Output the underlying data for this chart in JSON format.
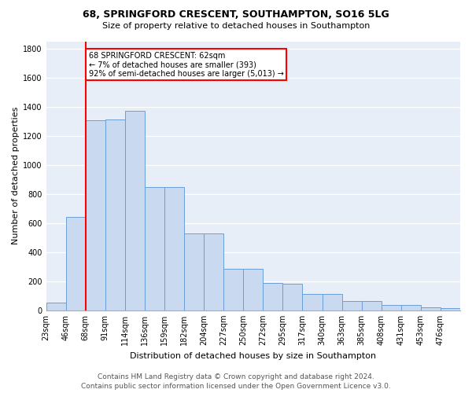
{
  "title1": "68, SPRINGFORD CRESCENT, SOUTHAMPTON, SO16 5LG",
  "title2": "Size of property relative to detached houses in Southampton",
  "xlabel": "Distribution of detached houses by size in Southampton",
  "ylabel": "Number of detached properties",
  "bin_labels": [
    "23sqm",
    "46sqm",
    "68sqm",
    "91sqm",
    "114sqm",
    "136sqm",
    "159sqm",
    "182sqm",
    "204sqm",
    "227sqm",
    "250sqm",
    "272sqm",
    "295sqm",
    "317sqm",
    "340sqm",
    "363sqm",
    "385sqm",
    "408sqm",
    "431sqm",
    "453sqm",
    "476sqm"
  ],
  "bar_heights": [
    55,
    640,
    1305,
    1310,
    1370,
    845,
    845,
    530,
    530,
    285,
    285,
    190,
    185,
    110,
    110,
    65,
    65,
    35,
    35,
    20,
    15
  ],
  "bar_color": "#c8d9f0",
  "bar_edge_color": "#6a9fd8",
  "annotation_text": "68 SPRINGFORD CRESCENT: 62sqm\n← 7% of detached houses are smaller (393)\n92% of semi-detached houses are larger (5,013) →",
  "annotation_box_color": "white",
  "annotation_box_edge": "red",
  "red_line_index": 2,
  "bg_color": "#e8eef8",
  "footer_line1": "Contains HM Land Registry data © Crown copyright and database right 2024.",
  "footer_line2": "Contains public sector information licensed under the Open Government Licence v3.0.",
  "ylim": [
    0,
    1850
  ],
  "yticks": [
    0,
    200,
    400,
    600,
    800,
    1000,
    1200,
    1400,
    1600,
    1800
  ],
  "title1_fontsize": 9,
  "title2_fontsize": 8,
  "ylabel_fontsize": 8,
  "xlabel_fontsize": 8,
  "tick_fontsize": 7,
  "footer_fontsize": 6.5
}
